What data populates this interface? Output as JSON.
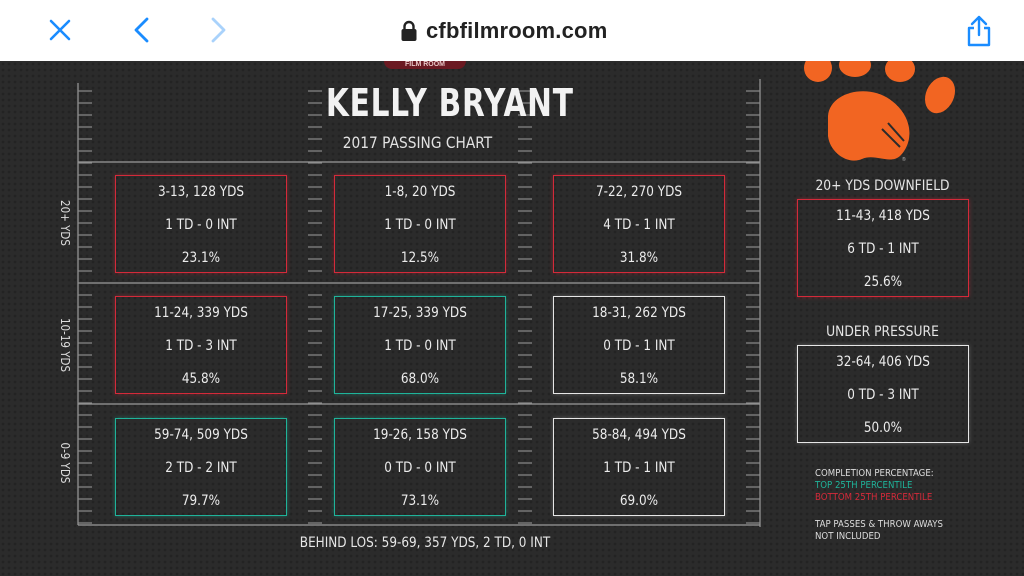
{
  "browser": {
    "url": "cfbfilmroom.com",
    "icons": [
      "close-icon",
      "back-icon",
      "forward-icon",
      "lock-icon",
      "share-icon"
    ]
  },
  "colors": {
    "red": "#d42a3a",
    "teal": "#1fb39a",
    "white": "#e6e6e6",
    "paw_orange": "#f26522",
    "background": "#2b2b2b"
  },
  "chart": {
    "title": "KELLY BRYANT",
    "subtitle": "2017 PASSING CHART",
    "row_labels": [
      "20+ YDS",
      "10-19 YDS",
      "0-9 YDS"
    ],
    "rows": [
      [
        {
          "l1": "3-13, 128 YDS",
          "l2": "1 TD - 0 INT",
          "l3": "23.1%",
          "tier": "red"
        },
        {
          "l1": "1-8, 20 YDS",
          "l2": "1 TD - 0 INT",
          "l3": "12.5%",
          "tier": "red"
        },
        {
          "l1": "7-22, 270 YDS",
          "l2": "4 TD - 1 INT",
          "l3": "31.8%",
          "tier": "red"
        }
      ],
      [
        {
          "l1": "11-24, 339 YDS",
          "l2": "1 TD - 3 INT",
          "l3": "45.8%",
          "tier": "red"
        },
        {
          "l1": "17-25, 339 YDS",
          "l2": "1 TD - 0 INT",
          "l3": "68.0%",
          "tier": "teal"
        },
        {
          "l1": "18-31, 262 YDS",
          "l2": "0 TD - 1 INT",
          "l3": "58.1%",
          "tier": "white"
        }
      ],
      [
        {
          "l1": "59-74, 509 YDS",
          "l2": "2 TD - 2 INT",
          "l3": "79.7%",
          "tier": "teal"
        },
        {
          "l1": "19-26, 158 YDS",
          "l2": "0 TD - 0 INT",
          "l3": "73.1%",
          "tier": "teal"
        },
        {
          "l1": "58-84, 494 YDS",
          "l2": "1 TD - 1 INT",
          "l3": "69.0%",
          "tier": "white"
        }
      ]
    ],
    "behind_los": "BEHIND LOS: 59-69, 357 YDS, 2 TD, 0 INT"
  },
  "side": {
    "downfield": {
      "heading": "20+ YDS DOWNFIELD",
      "l1": "11-43, 418 YDS",
      "l2": "6 TD - 1 INT",
      "l3": "25.6%",
      "tier": "red"
    },
    "pressure": {
      "heading": "UNDER PRESSURE",
      "l1": "32-64, 406 YDS",
      "l2": "0 TD - 3 INT",
      "l3": "50.0%",
      "tier": "white"
    }
  },
  "legend": {
    "title1": "COMPLETION PERCENTAGE:",
    "top": "TOP 25TH PERCENTILE",
    "bottom": "BOTTOM 25TH PERCENTILE",
    "note1": "TAP PASSES & THROW AWAYS",
    "note2": "NOT INCLUDED"
  }
}
